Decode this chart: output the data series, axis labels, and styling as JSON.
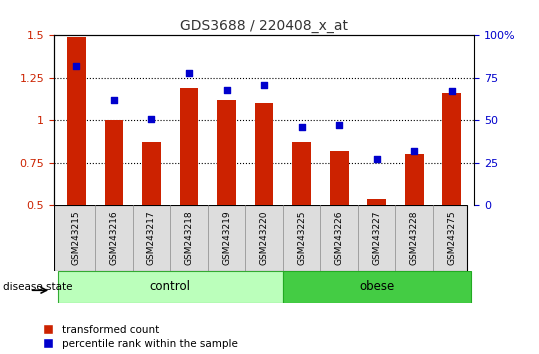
{
  "title": "GDS3688 / 220408_x_at",
  "samples": [
    "GSM243215",
    "GSM243216",
    "GSM243217",
    "GSM243218",
    "GSM243219",
    "GSM243220",
    "GSM243225",
    "GSM243226",
    "GSM243227",
    "GSM243228",
    "GSM243275"
  ],
  "transformed_count": [
    1.49,
    1.0,
    0.87,
    1.19,
    1.12,
    1.1,
    0.87,
    0.82,
    0.54,
    0.8,
    1.16
  ],
  "percentile_rank": [
    82,
    62,
    51,
    78,
    68,
    71,
    46,
    47,
    27,
    32,
    67
  ],
  "ylim_left": [
    0.5,
    1.5
  ],
  "ylim_right": [
    0,
    100
  ],
  "yticks_left": [
    0.5,
    0.75,
    1.0,
    1.25,
    1.5
  ],
  "ytick_labels_left": [
    "0.5",
    "0.75",
    "1",
    "1.25",
    "1.5"
  ],
  "yticks_right": [
    0,
    25,
    50,
    75,
    100
  ],
  "ytick_labels_right": [
    "0",
    "25",
    "50",
    "75",
    "100%"
  ],
  "bar_color": "#cc2200",
  "dot_color": "#0000cc",
  "control_indices": [
    0,
    1,
    2,
    3,
    4,
    5
  ],
  "obese_indices": [
    6,
    7,
    8,
    9,
    10
  ],
  "control_label": "control",
  "obese_label": "obese",
  "control_color": "#bbffbb",
  "obese_color": "#44cc44",
  "sample_band_color": "#dddddd",
  "legend_bar_label": "transformed count",
  "legend_dot_label": "percentile rank within the sample",
  "disease_state_label": "disease state",
  "title_color": "#333333",
  "left_axis_color": "#cc2200",
  "right_axis_color": "#0000cc",
  "bar_width": 0.5
}
